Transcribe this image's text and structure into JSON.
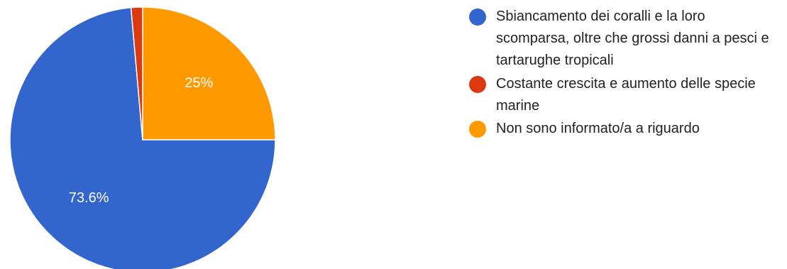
{
  "chart_data": {
    "type": "pie",
    "categories": [
      "Sbiancamento dei coralli e la loro scomparsa, oltre che grossi danni a pesci e tartarughe tropicali",
      "Costante crescita e aumento delle specie marine",
      "Non sono informato/a a riguardo"
    ],
    "values": [
      73.6,
      1.4,
      25
    ],
    "data_labels": [
      "73.6%",
      "",
      "25%"
    ],
    "colors": [
      "#3366cc",
      "#dc3912",
      "#ff9900"
    ],
    "legend_position": "right",
    "start_angle": "12 o'clock, clockwise order: Non sono informato/a a riguardo, Sbiancamento dei coralli, Costante crescita"
  },
  "legend": {
    "items": [
      {
        "label": "Sbiancamento dei coralli e la loro scomparsa, oltre che grossi danni a pesci e tartarughe tropicali",
        "color": "#3366cc"
      },
      {
        "label": "Costante crescita e aumento delle specie marine",
        "color": "#dc3912"
      },
      {
        "label": "Non sono informato/a a riguardo",
        "color": "#ff9900"
      }
    ]
  }
}
